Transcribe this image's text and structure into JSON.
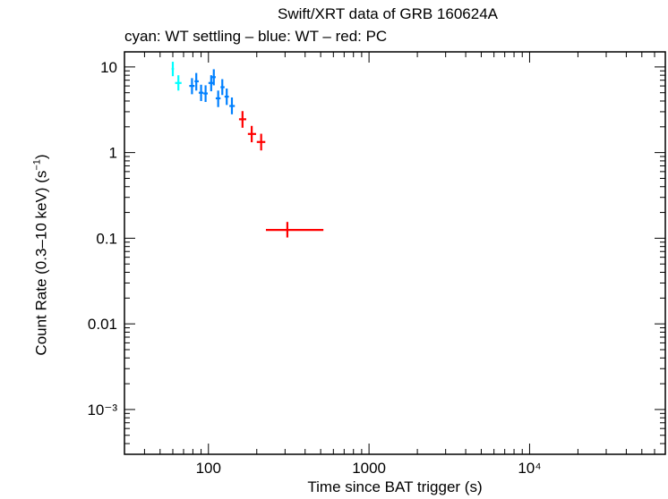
{
  "chart_data": {
    "type": "scatter",
    "title": "Swift/XRT data of GRB 160624A",
    "subtitle": "cyan: WT settling – blue: WT – red: PC",
    "xlabel": "Time since BAT trigger (s)",
    "ylabel_main": "Count Rate (0.3–10 keV) (s",
    "ylabel_sup": "−1",
    "ylabel_end": ")",
    "xscale": "log",
    "yscale": "log",
    "xlim": [
      30,
      70000
    ],
    "ylim": [
      0.0003,
      15
    ],
    "x_ticks": [
      {
        "value": 100,
        "label": "100"
      },
      {
        "value": 1000,
        "label": "1000"
      },
      {
        "value": 10000,
        "label": "10⁴"
      }
    ],
    "y_ticks": [
      {
        "value": 10,
        "label": "10"
      },
      {
        "value": 1,
        "label": "1"
      },
      {
        "value": 0.1,
        "label": "0.1"
      },
      {
        "value": 0.01,
        "label": "0.01"
      },
      {
        "value": 0.001,
        "label": "10⁻³"
      }
    ],
    "series": [
      {
        "name": "WT settling",
        "color": "#00ffff",
        "points": [
          {
            "x": 60,
            "x_lo": 59,
            "x_hi": 61,
            "y": 9.5,
            "y_lo": 7.8,
            "y_hi": 11.5
          },
          {
            "x": 65,
            "x_lo": 62,
            "x_hi": 68,
            "y": 6.5,
            "y_lo": 5.3,
            "y_hi": 8.0
          }
        ]
      },
      {
        "name": "WT",
        "color": "#0080ff",
        "points": [
          {
            "x": 79,
            "x_lo": 76,
            "x_hi": 82,
            "y": 6.0,
            "y_lo": 4.8,
            "y_hi": 7.4
          },
          {
            "x": 84,
            "x_lo": 82,
            "x_hi": 87,
            "y": 6.8,
            "y_lo": 5.3,
            "y_hi": 8.5
          },
          {
            "x": 90,
            "x_lo": 87,
            "x_hi": 93,
            "y": 5.0,
            "y_lo": 4.0,
            "y_hi": 6.2
          },
          {
            "x": 96,
            "x_lo": 93,
            "x_hi": 99,
            "y": 4.9,
            "y_lo": 3.9,
            "y_hi": 6.1
          },
          {
            "x": 104,
            "x_lo": 100,
            "x_hi": 107,
            "y": 6.5,
            "y_lo": 5.2,
            "y_hi": 8.0
          },
          {
            "x": 108,
            "x_lo": 105,
            "x_hi": 111,
            "y": 7.6,
            "y_lo": 6.1,
            "y_hi": 9.4
          },
          {
            "x": 115,
            "x_lo": 111,
            "x_hi": 119,
            "y": 4.3,
            "y_lo": 3.4,
            "y_hi": 5.3
          },
          {
            "x": 122,
            "x_lo": 119,
            "x_hi": 126,
            "y": 5.8,
            "y_lo": 4.7,
            "y_hi": 7.2
          },
          {
            "x": 130,
            "x_lo": 126,
            "x_hi": 134,
            "y": 4.5,
            "y_lo": 3.6,
            "y_hi": 5.6
          },
          {
            "x": 140,
            "x_lo": 135,
            "x_hi": 146,
            "y": 3.5,
            "y_lo": 2.8,
            "y_hi": 4.4
          }
        ]
      },
      {
        "name": "PC",
        "color": "#ff0000",
        "points": [
          {
            "x": 163,
            "x_lo": 155,
            "x_hi": 172,
            "y": 2.45,
            "y_lo": 1.95,
            "y_hi": 3.05
          },
          {
            "x": 186,
            "x_lo": 176,
            "x_hi": 198,
            "y": 1.65,
            "y_lo": 1.32,
            "y_hi": 2.05
          },
          {
            "x": 213,
            "x_lo": 200,
            "x_hi": 226,
            "y": 1.33,
            "y_lo": 1.06,
            "y_hi": 1.66
          },
          {
            "x": 310,
            "x_lo": 228,
            "x_hi": 520,
            "y": 0.125,
            "y_lo": 0.102,
            "y_hi": 0.155
          }
        ]
      }
    ]
  }
}
